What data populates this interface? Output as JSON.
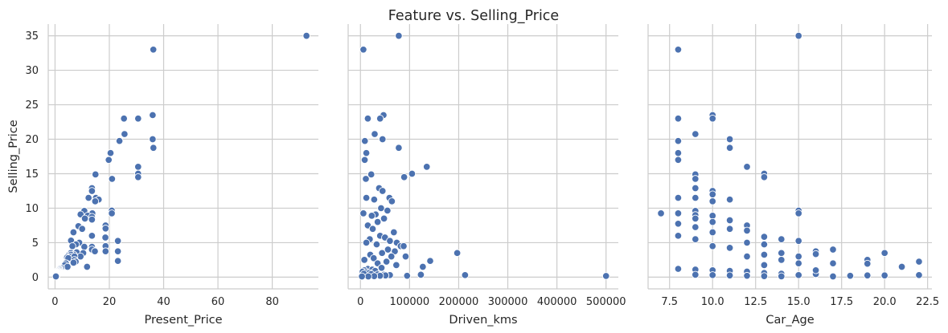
{
  "figure_title": "Feature vs. Selling_Price",
  "colors": {
    "marker": "#4c72b0",
    "grid": "#cccccc",
    "text": "#262626"
  },
  "chart_data": [
    {
      "type": "scatter",
      "title": "",
      "xlabel": "Present_Price",
      "ylabel": "Selling_Price",
      "xlim": [
        -2.5,
        97
      ],
      "ylim": [
        -1.7,
        36.7
      ],
      "xticks": [
        0,
        20,
        40,
        60,
        80
      ],
      "xtick_labels": [
        "0",
        "20",
        "40",
        "60",
        "80"
      ],
      "yticks": [
        0,
        5,
        10,
        15,
        20,
        25,
        30,
        35
      ],
      "ytick_labels": [
        "0",
        "5",
        "10",
        "15",
        "20",
        "25",
        "30",
        "35"
      ],
      "grid": true,
      "points": [
        [
          92.6,
          35.0
        ],
        [
          36.2,
          33.0
        ],
        [
          35.96,
          23.5
        ],
        [
          25.39,
          23.0
        ],
        [
          30.61,
          23.0
        ],
        [
          25.6,
          20.75
        ],
        [
          35.96,
          20.0
        ],
        [
          23.73,
          19.75
        ],
        [
          36.23,
          18.75
        ],
        [
          20.45,
          18.0
        ],
        [
          19.77,
          17.0
        ],
        [
          30.61,
          16.0
        ],
        [
          30.61,
          15.0
        ],
        [
          30.61,
          14.5
        ],
        [
          14.9,
          14.9
        ],
        [
          21.0,
          14.25
        ],
        [
          13.6,
          12.9
        ],
        [
          13.6,
          12.5
        ],
        [
          15.04,
          11.5
        ],
        [
          12.35,
          11.5
        ],
        [
          16.09,
          11.25
        ],
        [
          14.79,
          11.0
        ],
        [
          10.79,
          9.6
        ],
        [
          20.91,
          9.65
        ],
        [
          20.91,
          9.25
        ],
        [
          13.74,
          9.25
        ],
        [
          9.4,
          9.1
        ],
        [
          12.04,
          8.9
        ],
        [
          13.6,
          8.75
        ],
        [
          11.0,
          8.5
        ],
        [
          13.6,
          8.35
        ],
        [
          8.61,
          7.4
        ],
        [
          18.61,
          7.5
        ],
        [
          18.61,
          7.05
        ],
        [
          10.0,
          7.0
        ],
        [
          6.79,
          6.5
        ],
        [
          13.6,
          6.0
        ],
        [
          18.54,
          5.75
        ],
        [
          23.15,
          5.25
        ],
        [
          5.9,
          5.3
        ],
        [
          8.93,
          5.0
        ],
        [
          7.71,
          4.75
        ],
        [
          6.4,
          4.5
        ],
        [
          13.6,
          4.4
        ],
        [
          18.61,
          4.5
        ],
        [
          10.79,
          4.4
        ],
        [
          13.6,
          4.0
        ],
        [
          14.68,
          3.75
        ],
        [
          18.61,
          3.75
        ],
        [
          7.98,
          3.6
        ],
        [
          5.8,
          3.5
        ],
        [
          23.15,
          3.75
        ],
        [
          10.38,
          3.5
        ],
        [
          6.95,
          3.25
        ],
        [
          4.99,
          3.15
        ],
        [
          9.4,
          3.0
        ],
        [
          5.87,
          3.25
        ],
        [
          5.71,
          2.95
        ],
        [
          7.15,
          3.0
        ],
        [
          4.43,
          2.85
        ],
        [
          4.89,
          2.75
        ],
        [
          7.21,
          2.5
        ],
        [
          23.15,
          2.35
        ],
        [
          7.6,
          2.25
        ],
        [
          4.15,
          2.0
        ],
        [
          3.98,
          2.0
        ],
        [
          11.8,
          1.5
        ],
        [
          6.82,
          2.1
        ],
        [
          3.6,
          1.75
        ],
        [
          4.6,
          1.5
        ],
        [
          2.28,
          1.35
        ],
        [
          1.82,
          1.25
        ],
        [
          1.5,
          1.2
        ],
        [
          1.47,
          1.15
        ],
        [
          1.26,
          1.05
        ],
        [
          1.05,
          0.95
        ],
        [
          0.99,
          0.9
        ],
        [
          0.95,
          0.8
        ],
        [
          0.84,
          0.72
        ],
        [
          0.87,
          0.65
        ],
        [
          0.95,
          0.6
        ],
        [
          0.82,
          0.55
        ],
        [
          0.84,
          0.5
        ],
        [
          0.8,
          0.45
        ],
        [
          0.78,
          0.42
        ],
        [
          0.58,
          0.4
        ],
        [
          0.75,
          0.38
        ],
        [
          0.55,
          0.35
        ],
        [
          0.65,
          0.3
        ],
        [
          0.52,
          0.27
        ],
        [
          0.52,
          0.25
        ],
        [
          0.58,
          0.2
        ],
        [
          0.48,
          0.17
        ],
        [
          0.32,
          0.12
        ],
        [
          0.32,
          0.1
        ]
      ]
    },
    {
      "type": "scatter",
      "title": "",
      "xlabel": "Driven_kms",
      "ylabel": "",
      "xlim": [
        -25000,
        525000
      ],
      "ylim": [
        -1.7,
        36.7
      ],
      "xticks": [
        0,
        100000,
        200000,
        300000,
        400000,
        500000
      ],
      "xtick_labels": [
        "0",
        "100000",
        "200000",
        "300000",
        "400000",
        "500000"
      ],
      "grid": true,
      "points": [
        [
          78000,
          35.0
        ],
        [
          6000,
          33.0
        ],
        [
          47000,
          23.5
        ],
        [
          15000,
          23.0
        ],
        [
          40000,
          23.0
        ],
        [
          29000,
          20.75
        ],
        [
          45000,
          20.0
        ],
        [
          9000,
          19.75
        ],
        [
          78000,
          18.75
        ],
        [
          12000,
          18.0
        ],
        [
          8700,
          17.0
        ],
        [
          135000,
          16.0
        ],
        [
          105000,
          15.0
        ],
        [
          89000,
          14.5
        ],
        [
          22000,
          14.9
        ],
        [
          11000,
          14.25
        ],
        [
          38000,
          12.9
        ],
        [
          45000,
          12.5
        ],
        [
          59000,
          11.5
        ],
        [
          12000,
          11.5
        ],
        [
          28000,
          11.25
        ],
        [
          64000,
          11.0
        ],
        [
          42000,
          10.0
        ],
        [
          55000,
          9.65
        ],
        [
          6000,
          9.25
        ],
        [
          31000,
          9.1
        ],
        [
          23000,
          8.9
        ],
        [
          48000,
          8.5
        ],
        [
          35000,
          8.0
        ],
        [
          15000,
          7.5
        ],
        [
          25000,
          7.0
        ],
        [
          68000,
          6.5
        ],
        [
          40000,
          6.0
        ],
        [
          50000,
          5.75
        ],
        [
          19000,
          5.5
        ],
        [
          60000,
          5.25
        ],
        [
          74000,
          5.0
        ],
        [
          12000,
          5.0
        ],
        [
          33000,
          4.75
        ],
        [
          82000,
          4.5
        ],
        [
          88000,
          4.5
        ],
        [
          56000,
          4.0
        ],
        [
          70000,
          3.75
        ],
        [
          44000,
          3.5
        ],
        [
          20000,
          3.25
        ],
        [
          92000,
          3.0
        ],
        [
          63000,
          3.0
        ],
        [
          27000,
          2.75
        ],
        [
          8000,
          2.5
        ],
        [
          142000,
          2.35
        ],
        [
          53000,
          2.25
        ],
        [
          35000,
          2.0
        ],
        [
          73000,
          1.75
        ],
        [
          127000,
          1.5
        ],
        [
          43000,
          1.35
        ],
        [
          15000,
          1.2
        ],
        [
          24000,
          1.1
        ],
        [
          8000,
          1.0
        ],
        [
          30000,
          0.9
        ],
        [
          4500,
          0.8
        ],
        [
          12000,
          0.7
        ],
        [
          18000,
          0.6
        ],
        [
          7000,
          0.5
        ],
        [
          22000,
          0.45
        ],
        [
          35000,
          0.4
        ],
        [
          48000,
          0.35
        ],
        [
          500000,
          0.17
        ],
        [
          213000,
          0.3
        ],
        [
          197000,
          3.5
        ],
        [
          123000,
          0.35
        ],
        [
          60000,
          0.3
        ],
        [
          51000,
          0.25
        ],
        [
          95000,
          0.2
        ],
        [
          40000,
          0.2
        ],
        [
          28000,
          0.15
        ],
        [
          16000,
          0.1
        ],
        [
          3000,
          0.1
        ]
      ]
    },
    {
      "type": "scatter",
      "title": "",
      "xlabel": "Car_Age",
      "ylabel": "",
      "xlim": [
        6.25,
        22.75
      ],
      "ylim": [
        -1.7,
        36.7
      ],
      "xticks": [
        7.5,
        10.0,
        12.5,
        15.0,
        17.5,
        20.0,
        22.5
      ],
      "xtick_labels": [
        "7.5",
        "10.0",
        "12.5",
        "15.0",
        "17.5",
        "20.0",
        "22.5"
      ],
      "grid": true,
      "points": [
        [
          15,
          35.0
        ],
        [
          8,
          33.0
        ],
        [
          10,
          23.5
        ],
        [
          8,
          23.0
        ],
        [
          10,
          23.0
        ],
        [
          9,
          20.75
        ],
        [
          11,
          20.0
        ],
        [
          8,
          19.75
        ],
        [
          11,
          18.75
        ],
        [
          8,
          18.0
        ],
        [
          8,
          17.0
        ],
        [
          12,
          16.0
        ],
        [
          13,
          15.0
        ],
        [
          9,
          14.9
        ],
        [
          13,
          14.5
        ],
        [
          9,
          14.25
        ],
        [
          9,
          12.9
        ],
        [
          10,
          12.5
        ],
        [
          10,
          12.0
        ],
        [
          8,
          11.5
        ],
        [
          9,
          11.5
        ],
        [
          11,
          11.25
        ],
        [
          10,
          11.0
        ],
        [
          7,
          9.25
        ],
        [
          8,
          9.25
        ],
        [
          9,
          9.6
        ],
        [
          15,
          9.65
        ],
        [
          15,
          9.25
        ],
        [
          9,
          9.0
        ],
        [
          10,
          8.9
        ],
        [
          11,
          8.25
        ],
        [
          9,
          8.5
        ],
        [
          10,
          8.0
        ],
        [
          8,
          7.75
        ],
        [
          12,
          7.5
        ],
        [
          9,
          7.25
        ],
        [
          11,
          7.0
        ],
        [
          12,
          6.75
        ],
        [
          10,
          6.5
        ],
        [
          13,
          5.85
        ],
        [
          8,
          6.0
        ],
        [
          9,
          5.5
        ],
        [
          14,
          5.5
        ],
        [
          15,
          5.25
        ],
        [
          16,
          3.75
        ],
        [
          12,
          5.0
        ],
        [
          13,
          4.75
        ],
        [
          10,
          4.5
        ],
        [
          11,
          4.25
        ],
        [
          17,
          4.0
        ],
        [
          14,
          3.5
        ],
        [
          16,
          3.35
        ],
        [
          20,
          3.5
        ],
        [
          12,
          3.0
        ],
        [
          13,
          3.25
        ],
        [
          15,
          3.0
        ],
        [
          19,
          2.5
        ],
        [
          22,
          2.25
        ],
        [
          14,
          2.5
        ],
        [
          15,
          2.0
        ],
        [
          17,
          2.0
        ],
        [
          19,
          1.95
        ],
        [
          21,
          1.5
        ],
        [
          13,
          1.75
        ],
        [
          8,
          1.2
        ],
        [
          9,
          1.1
        ],
        [
          10,
          1.0
        ],
        [
          11,
          0.9
        ],
        [
          12,
          0.8
        ],
        [
          13,
          0.6
        ],
        [
          14,
          0.5
        ],
        [
          16,
          0.45
        ],
        [
          9,
          0.35
        ],
        [
          15,
          0.3
        ],
        [
          18,
          0.2
        ],
        [
          22,
          0.3
        ],
        [
          20,
          0.25
        ],
        [
          19,
          0.25
        ],
        [
          14,
          0.12
        ],
        [
          17,
          0.1
        ],
        [
          16,
          1.0
        ],
        [
          10,
          0.3
        ],
        [
          11,
          0.25
        ],
        [
          12,
          0.2
        ],
        [
          13,
          0.15
        ]
      ]
    }
  ]
}
